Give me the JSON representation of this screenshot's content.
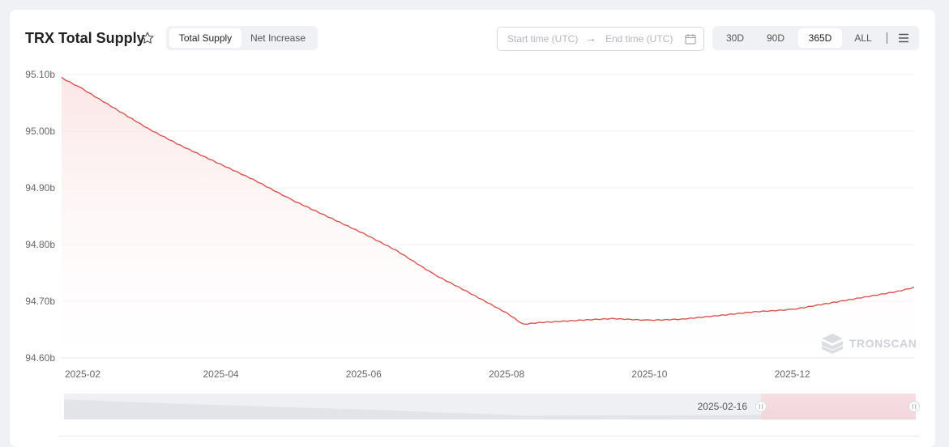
{
  "header": {
    "title": "TRX Total Supply",
    "star_icon": "star-outline-icon",
    "tabs": [
      {
        "label": "Total Supply",
        "active": true
      },
      {
        "label": "Net Increase",
        "active": false
      }
    ],
    "date_range": {
      "start_placeholder": "Start time (UTC)",
      "end_placeholder": "End time (UTC)",
      "arrow": "→",
      "calendar_icon": "calendar-icon"
    },
    "periods": [
      {
        "label": "30D",
        "active": false
      },
      {
        "label": "90D",
        "active": false
      },
      {
        "label": "365D",
        "active": true
      },
      {
        "label": "ALL",
        "active": false
      }
    ],
    "menu_icon": "hamburger-menu-icon"
  },
  "watermark": "TRONSCAN",
  "slider": {
    "start_label": "2025-02-16"
  },
  "colors": {
    "line": "#d9534f",
    "area_top": "#fbe3e3",
    "accent": "#c23531"
  },
  "chart_data": {
    "type": "area",
    "title": "",
    "xlabel": "",
    "ylabel": "",
    "y_unit": "b",
    "ylim": [
      94.6,
      95.1
    ],
    "y_ticks": [
      "95.10b",
      "95.00b",
      "94.90b",
      "94.80b",
      "94.70b",
      "94.60b"
    ],
    "x_tick_labels": [
      "2025-02",
      "2025-04",
      "2025-06",
      "2025-08",
      "2025-10",
      "2025-12"
    ],
    "x_range": [
      "2025-01-23",
      "2026-01-22"
    ],
    "grid": true,
    "series": [
      {
        "x": [
          "2025-01-23",
          "2025-02-01",
          "2025-02-15",
          "2025-03-01",
          "2025-03-15",
          "2025-04-01",
          "2025-04-15",
          "2025-05-01",
          "2025-05-15",
          "2025-06-01",
          "2025-06-15",
          "2025-07-01",
          "2025-07-15",
          "2025-08-01",
          "2025-08-08",
          "2025-08-15",
          "2025-09-01",
          "2025-09-15",
          "2025-10-01",
          "2025-10-15",
          "2025-11-01",
          "2025-11-15",
          "2025-12-01",
          "2025-12-15",
          "2026-01-01",
          "2026-01-15",
          "2026-01-22"
        ],
        "values": [
          95.095,
          95.075,
          95.04,
          95.005,
          94.975,
          94.942,
          94.915,
          94.88,
          94.853,
          94.82,
          94.79,
          94.748,
          94.718,
          94.68,
          94.66,
          94.663,
          94.667,
          94.67,
          94.667,
          94.669,
          94.676,
          94.682,
          94.686,
          94.696,
          94.708,
          94.718,
          94.725
        ]
      }
    ]
  }
}
